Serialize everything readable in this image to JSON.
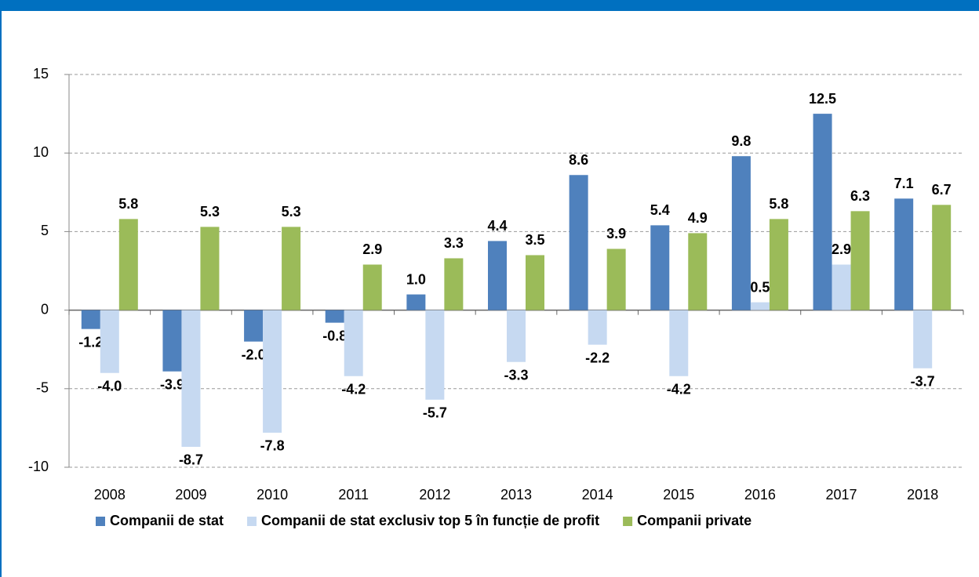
{
  "chart_data": {
    "type": "bar",
    "categories": [
      "2008",
      "2009",
      "2010",
      "2011",
      "2012",
      "2013",
      "2014",
      "2015",
      "2016",
      "2017",
      "2018"
    ],
    "series": [
      {
        "name": "Companii de stat",
        "color": "#4f81bd",
        "values": [
          -1.2,
          -3.9,
          -2.0,
          -0.8,
          1.0,
          4.4,
          8.6,
          5.4,
          9.8,
          12.5,
          7.1
        ],
        "value_labels": [
          "-1.2",
          "-3.9",
          "-2.0",
          "-0.8",
          "1.0",
          "4.4",
          "8.6",
          "5.4",
          "9.8",
          "12.5",
          "7.1"
        ]
      },
      {
        "name": "Companii de stat exclusiv top 5 în funcție de profit",
        "color": "#c6d9f1",
        "values": [
          -4.0,
          -8.7,
          -7.8,
          -4.2,
          -5.7,
          -3.3,
          -2.2,
          -4.2,
          0.5,
          2.9,
          -3.7
        ],
        "value_labels": [
          "-4.0",
          "-8.7",
          "-7.8",
          "-4.2",
          "-5.7",
          "-3.3",
          "-2.2",
          "-4.2",
          "0.5",
          "2.9",
          "-3.7"
        ]
      },
      {
        "name": "Companii private",
        "color": "#9bbb59",
        "values": [
          5.8,
          5.3,
          5.3,
          2.9,
          3.3,
          3.5,
          3.9,
          4.9,
          5.8,
          6.3,
          6.7
        ],
        "value_labels": [
          "5.8",
          "5.3",
          "5.3",
          "2.9",
          "3.3",
          "3.5",
          "3.9",
          "4.9",
          "5.8",
          "6.3",
          "6.7"
        ]
      }
    ],
    "ylim": [
      -10,
      15
    ],
    "yticks": [
      -10,
      -5,
      0,
      5,
      10,
      15
    ],
    "grid": true,
    "legend": "bottom"
  }
}
